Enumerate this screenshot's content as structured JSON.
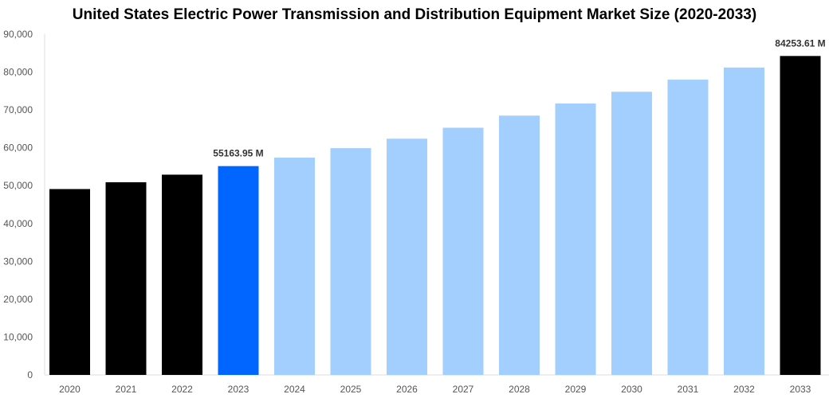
{
  "chart_data": {
    "type": "bar",
    "title": "United States Electric Power Transmission and Distribution Equipment Market Size (2020-2033)",
    "xlabel": "",
    "ylabel": "",
    "ylim": [
      0,
      90000
    ],
    "yticks": [
      "0",
      "10,000",
      "20,000",
      "30,000",
      "40,000",
      "50,000",
      "60,000",
      "70,000",
      "80,000",
      "90,000"
    ],
    "grid": false,
    "categories": [
      "2020",
      "2021",
      "2022",
      "2023",
      "2024",
      "2025",
      "2026",
      "2027",
      "2028",
      "2029",
      "2030",
      "2031",
      "2032",
      "2033"
    ],
    "values": [
      49100,
      50900,
      52900,
      55163.95,
      57400,
      59900,
      62400,
      65300,
      68500,
      71700,
      74800,
      78000,
      81200,
      84253.61
    ],
    "colors": [
      "#000000",
      "#000000",
      "#000000",
      "#0066ff",
      "#a3cffe",
      "#a3cffe",
      "#a3cffe",
      "#a3cffe",
      "#a3cffe",
      "#a3cffe",
      "#a3cffe",
      "#a3cffe",
      "#a3cffe",
      "#000000"
    ],
    "data_labels": {
      "3": "55163.95 M",
      "13": "84253.61 M"
    }
  }
}
